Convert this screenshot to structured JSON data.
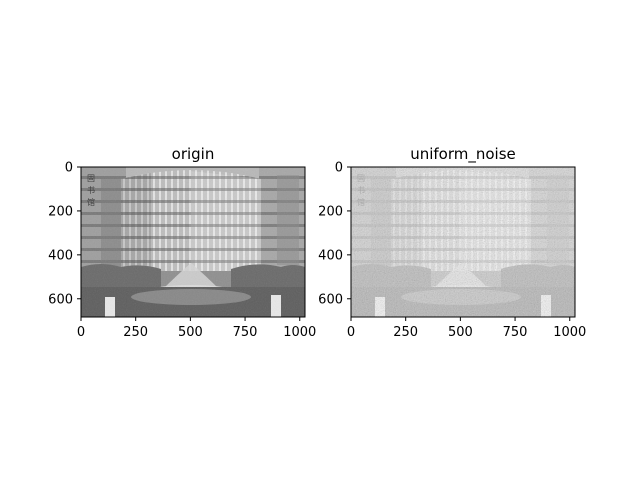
{
  "chart_data": [
    {
      "type": "image",
      "title": "origin",
      "xlim": [
        0,
        1024
      ],
      "ylim": [
        683,
        0
      ],
      "xticks": [
        0,
        250,
        500,
        750,
        1000
      ],
      "yticks": [
        0,
        200,
        400,
        600
      ],
      "colormap": "gray",
      "content": "grayscale photograph of a curved multi-storey building with a fountain in front"
    },
    {
      "type": "image",
      "title": "uniform_noise",
      "xlim": [
        0,
        1024
      ],
      "ylim": [
        683,
        0
      ],
      "xticks": [
        0,
        250,
        500,
        750,
        1000
      ],
      "yticks": [
        0,
        200,
        400,
        600
      ],
      "colormap": "gray",
      "content": "same photograph with heavy uniform noise added, appearing brighter and washed out"
    }
  ]
}
